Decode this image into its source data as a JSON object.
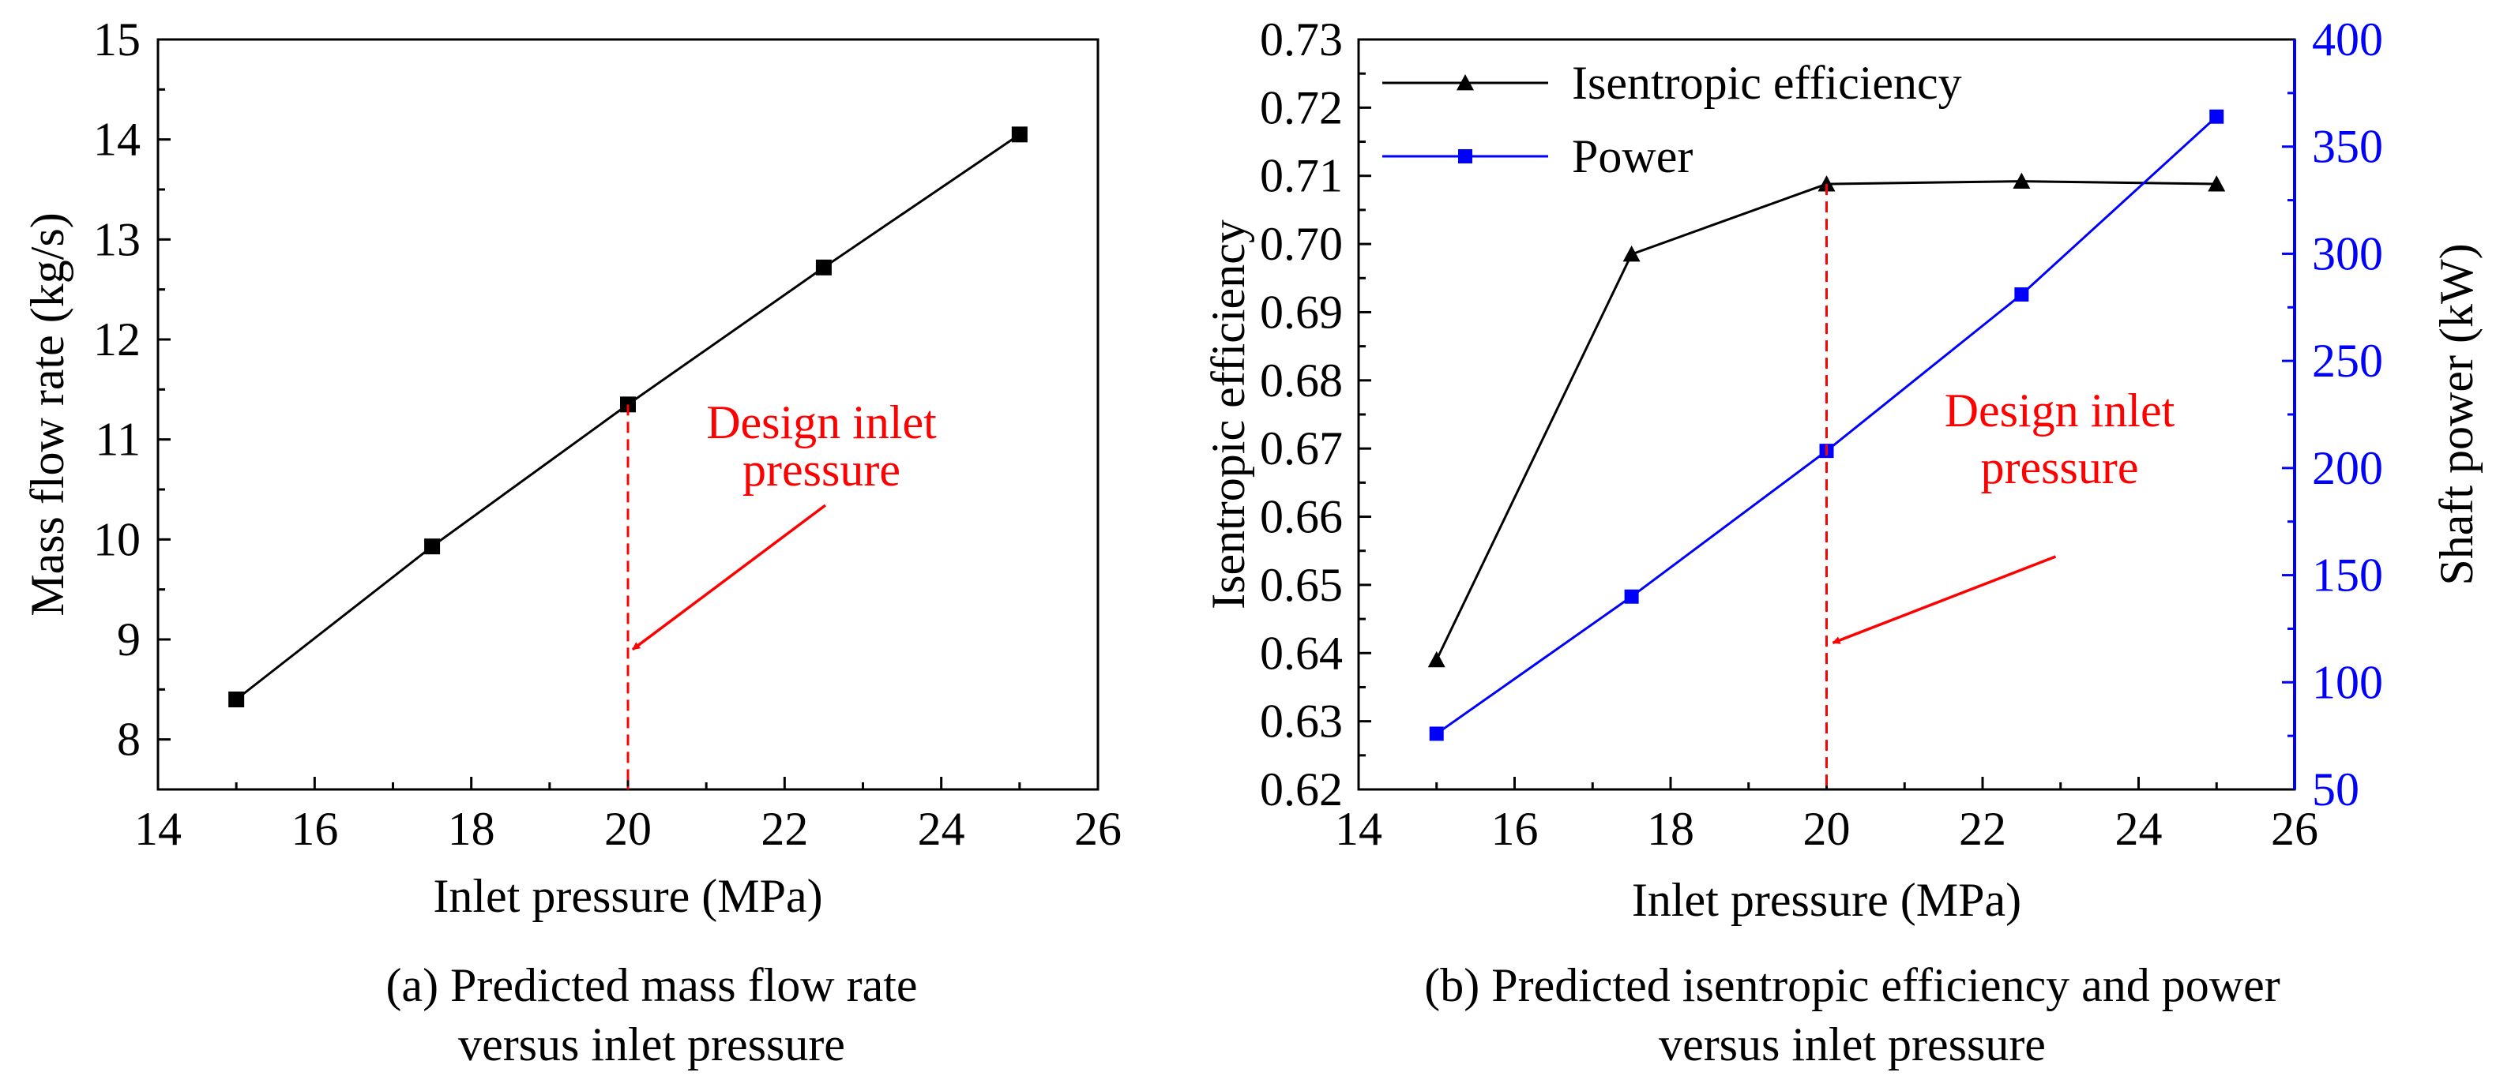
{
  "chart_data": [
    {
      "type": "line",
      "panel": "a",
      "caption_line1": "(a) Predicted mass flow rate",
      "caption_line2": "versus inlet pressure",
      "xlabel": "Inlet pressure (MPa)",
      "ylabel": "Mass flow rate (kg/s)",
      "xlim": [
        14,
        26
      ],
      "ylim": [
        7.5,
        15
      ],
      "xticks": [
        14,
        16,
        18,
        20,
        22,
        24,
        26
      ],
      "yticks": [
        8,
        9,
        10,
        11,
        12,
        13,
        14,
        15
      ],
      "x": [
        15,
        17.5,
        20,
        22.5,
        25
      ],
      "series": [
        {
          "name": "Mass flow rate",
          "values": [
            8.4,
            9.93,
            11.35,
            12.72,
            14.05
          ],
          "color": "#000000",
          "marker": "square",
          "axis": "left"
        }
      ],
      "annotation": {
        "line1": "Design inlet",
        "line2": "pressure",
        "x": 20,
        "color": "#ff0000"
      }
    },
    {
      "type": "line",
      "panel": "b",
      "caption_line1": "(b) Predicted isentropic efficiency and power",
      "caption_line2": "versus inlet pressure",
      "xlabel": "Inlet pressure (MPa)",
      "ylabel": "Isentropic efficiency",
      "y2label": "Shaft power (kW)",
      "xlim": [
        14,
        26
      ],
      "ylim": [
        0.62,
        0.73
      ],
      "y2lim": [
        50,
        400
      ],
      "xticks": [
        14,
        16,
        18,
        20,
        22,
        24,
        26
      ],
      "yticks": [
        "0.62",
        "0.63",
        "0.64",
        "0.65",
        "0.66",
        "0.67",
        "0.68",
        "0.69",
        "0.70",
        "0.71",
        "0.72",
        "0.73"
      ],
      "y2ticks": [
        50,
        100,
        150,
        200,
        250,
        300,
        350,
        400
      ],
      "x": [
        15,
        17.5,
        20,
        22.5,
        25
      ],
      "series": [
        {
          "name": "Isentropic efficiency",
          "values": [
            0.639,
            0.6985,
            0.7088,
            0.7092,
            0.7088
          ],
          "color": "#000000",
          "marker": "triangle",
          "axis": "left"
        },
        {
          "name": "Power",
          "values": [
            76,
            140,
            208,
            281,
            364
          ],
          "color": "#0000ff",
          "marker": "square",
          "axis": "right"
        }
      ],
      "legend_position": "top-left",
      "annotation": {
        "line1": "Design inlet",
        "line2": "pressure",
        "x": 20,
        "color": "#ff0000"
      }
    }
  ]
}
